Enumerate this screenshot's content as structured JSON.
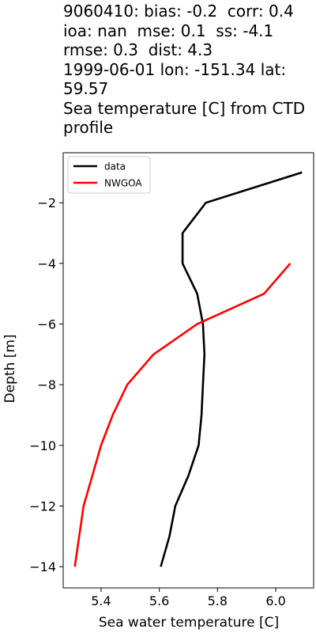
{
  "chart_data": {
    "type": "line",
    "title": "9060410: bias: -0.2  corr: 0.4  ioa: nan  mse: 0.1  ss: -4.1  rmse: 0.3  dist: 4.3\n1999-06-01 lon: -151.34 lat: 59.57\nSea temperature [C] from CTD profile",
    "xlabel": "Sea water temperature [C]",
    "ylabel": "Depth [m]",
    "xlim": [
      5.27,
      6.13
    ],
    "ylim": [
      -14.7,
      -0.35
    ],
    "xticks": [
      5.4,
      5.6,
      5.8,
      6.0
    ],
    "xtick_labels": [
      "5.4",
      "5.6",
      "5.8",
      "6.0"
    ],
    "yticks": [
      -2,
      -4,
      -6,
      -8,
      -10,
      -12,
      -14
    ],
    "ytick_labels": [
      "−2",
      "−4",
      "−6",
      "−8",
      "−10",
      "−12",
      "−14"
    ],
    "grid": false,
    "legend_position": "upper-left",
    "series": [
      {
        "name": "data",
        "color": "#000000",
        "x": [
          6.09,
          5.76,
          5.68,
          5.68,
          5.73,
          5.75,
          5.755,
          5.75,
          5.745,
          5.735,
          5.7,
          5.655,
          5.635,
          5.605
        ],
        "y": [
          -1,
          -2,
          -3,
          -4,
          -5,
          -6,
          -7,
          -8,
          -9,
          -10,
          -11,
          -12,
          -13,
          -14
        ]
      },
      {
        "name": "NWGOA",
        "color": "#ff0000",
        "x": [
          6.05,
          5.96,
          5.73,
          5.58,
          5.49,
          5.44,
          5.4,
          5.37,
          5.34,
          5.31
        ],
        "y": [
          -4,
          -5,
          -6,
          -7,
          -8,
          -9,
          -10,
          -11,
          -12,
          -14
        ]
      }
    ]
  }
}
